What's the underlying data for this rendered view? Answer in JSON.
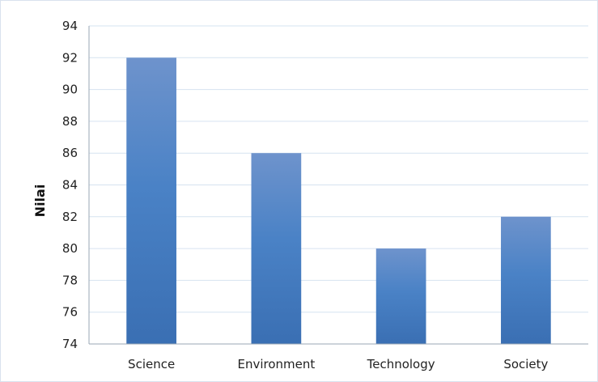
{
  "chart_data": {
    "type": "bar",
    "categories": [
      "Science",
      "Environment",
      "Technology",
      "Society"
    ],
    "values": [
      92,
      86,
      80,
      82
    ],
    "title": "",
    "xlabel": "",
    "ylabel": "Nilai",
    "ylim": [
      74,
      94
    ],
    "yticks": [
      74,
      76,
      78,
      80,
      82,
      84,
      86,
      88,
      90,
      92,
      94
    ],
    "grid": true,
    "legend": "none",
    "colors": {
      "bar_top": "#6e93cc",
      "bar_mid": "#4a82c6",
      "bar_bottom": "#3a6fb3",
      "grid": "#d6e3f0",
      "axis": "#9aa7b6"
    }
  }
}
